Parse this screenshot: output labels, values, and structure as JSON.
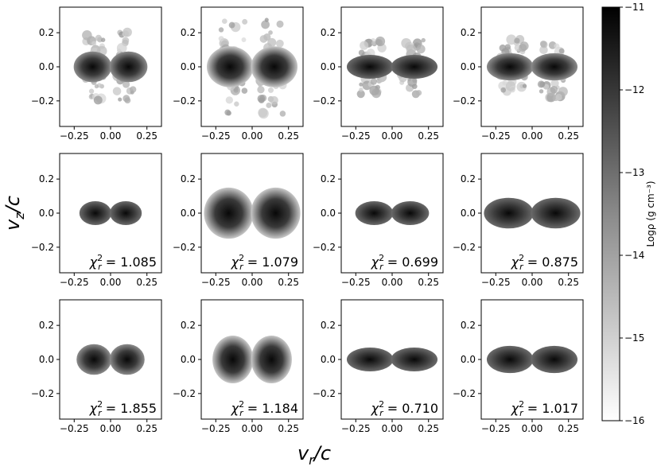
{
  "figure": {
    "xlabel": "v_r/c",
    "ylabel": "v_z/c",
    "xticks": [
      "−0.25",
      "0.00",
      "0.25"
    ],
    "yticks": [
      "0.2",
      "0.0",
      "−0.2"
    ],
    "xlim": [
      -0.35,
      0.35
    ],
    "ylim": [
      -0.35,
      0.35
    ]
  },
  "colorbar": {
    "label": "Logρ (g cm⁻³)",
    "range": [
      -16,
      -11
    ],
    "ticks": [
      "−11",
      "−12",
      "−13",
      "−14",
      "−15",
      "−16"
    ],
    "colormap": "greys (white = −16, black = −11)"
  },
  "chart_data": {
    "type": "heatmap",
    "rows": 3,
    "cols": 4,
    "quantity": "Logρ (g cm⁻³)",
    "panels": [
      {
        "row": 0,
        "col": 0,
        "chi2": "",
        "lobe_r": 0.13,
        "lobe_z": 0.09,
        "scatter": true,
        "blur": 0.3
      },
      {
        "row": 0,
        "col": 1,
        "chi2": "",
        "lobe_r": 0.16,
        "lobe_z": 0.12,
        "scatter": true,
        "blur": 0.6
      },
      {
        "row": 0,
        "col": 2,
        "chi2": "",
        "lobe_r": 0.16,
        "lobe_z": 0.07,
        "scatter": true,
        "blur": 0.2
      },
      {
        "row": 0,
        "col": 3,
        "chi2": "",
        "lobe_r": 0.16,
        "lobe_z": 0.08,
        "scatter": true,
        "blur": 0.3
      },
      {
        "row": 1,
        "col": 0,
        "chi2": "1.085",
        "lobe_r": 0.11,
        "lobe_z": 0.07,
        "scatter": false,
        "blur": 0.2
      },
      {
        "row": 1,
        "col": 1,
        "chi2": "1.079",
        "lobe_r": 0.17,
        "lobe_z": 0.15,
        "scatter": false,
        "blur": 0.8
      },
      {
        "row": 1,
        "col": 2,
        "chi2": "0.699",
        "lobe_r": 0.13,
        "lobe_z": 0.07,
        "scatter": false,
        "blur": 0.1
      },
      {
        "row": 1,
        "col": 3,
        "chi2": "0.875",
        "lobe_r": 0.17,
        "lobe_z": 0.09,
        "scatter": false,
        "blur": 0.2
      },
      {
        "row": 2,
        "col": 0,
        "chi2": "1.855",
        "lobe_r": 0.12,
        "lobe_z": 0.09,
        "scatter": false,
        "blur": 0.4
      },
      {
        "row": 2,
        "col": 1,
        "chi2": "1.184",
        "lobe_r": 0.14,
        "lobe_z": 0.14,
        "scatter": false,
        "blur": 0.6
      },
      {
        "row": 2,
        "col": 2,
        "chi2": "0.710",
        "lobe_r": 0.16,
        "lobe_z": 0.07,
        "scatter": false,
        "blur": 0.2
      },
      {
        "row": 2,
        "col": 3,
        "chi2": "1.017",
        "lobe_r": 0.16,
        "lobe_z": 0.08,
        "scatter": false,
        "blur": 0.2
      }
    ]
  }
}
